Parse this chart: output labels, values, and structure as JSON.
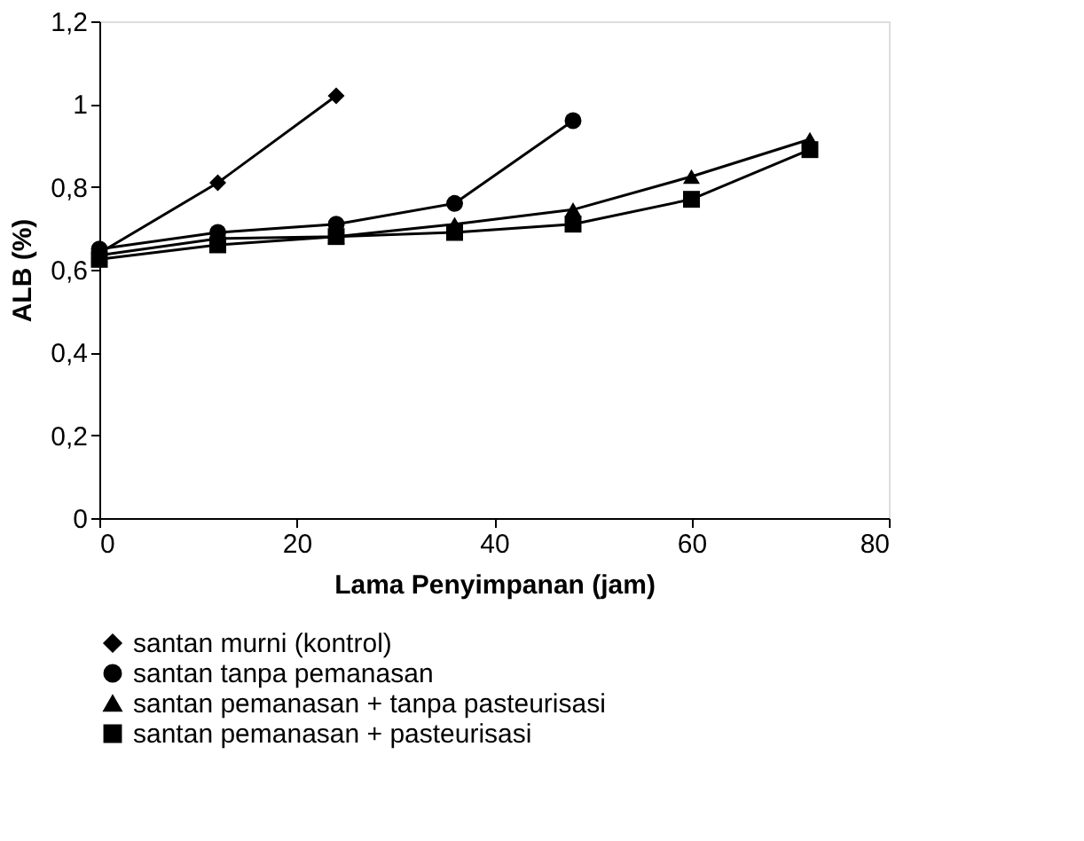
{
  "chart_data": {
    "type": "line",
    "xlabel": "Lama Penyimpanan (jam)",
    "ylabel": "ALB (%)",
    "xlim": [
      0,
      80
    ],
    "xticks": [
      0,
      20,
      40,
      60,
      80
    ],
    "ylim": [
      0,
      1.2
    ],
    "yticks": [
      0,
      {
        "value": 0.2,
        "label": "0,2"
      },
      {
        "value": 0.4,
        "label": "0,4"
      },
      {
        "value": 0.6,
        "label": "0,6"
      },
      {
        "value": 0.8,
        "label": "0,8"
      },
      1,
      {
        "value": 1.2,
        "label": "1,2"
      }
    ],
    "grid": false,
    "legend": "bottom",
    "line_style": "solid",
    "series": [
      {
        "name": "santan murni (kontrol)",
        "color": "#000000",
        "marker": "diamond",
        "x": [
          0,
          12,
          24
        ],
        "values": [
          0.64,
          0.81,
          1.02
        ]
      },
      {
        "name": "santan tanpa pemanasan",
        "color": "#000000",
        "marker": "circle",
        "x": [
          0,
          12,
          24,
          36,
          48
        ],
        "values": [
          0.65,
          0.69,
          0.71,
          0.76,
          0.96
        ]
      },
      {
        "name": "santan pemanasan + tanpa pasteurisasi",
        "color": "#000000",
        "marker": "triangle",
        "x": [
          0,
          12,
          24,
          36,
          48,
          60,
          72
        ],
        "values": [
          0.635,
          0.675,
          0.68,
          0.71,
          0.745,
          0.825,
          0.915
        ]
      },
      {
        "name": "santan pemanasan + pasteurisasi",
        "color": "#000000",
        "marker": "square",
        "x": [
          0,
          12,
          24,
          36,
          48,
          60,
          72
        ],
        "values": [
          0.625,
          0.66,
          0.68,
          0.69,
          0.71,
          0.77,
          0.89
        ]
      }
    ]
  }
}
